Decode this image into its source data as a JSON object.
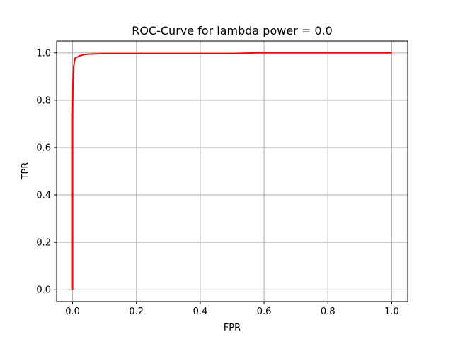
{
  "chart_data": {
    "type": "line",
    "title": "ROC-Curve for lambda power = 0.0",
    "xlabel": "FPR",
    "ylabel": "TPR",
    "xlim": [
      -0.05,
      1.05
    ],
    "ylim": [
      -0.05,
      1.05
    ],
    "xticks": [
      0.0,
      0.2,
      0.4,
      0.6,
      0.8,
      1.0
    ],
    "xtick_labels": [
      "0.0",
      "0.2",
      "0.4",
      "0.6",
      "0.8",
      "1.0"
    ],
    "yticks": [
      0.0,
      0.2,
      0.4,
      0.6,
      0.8,
      1.0
    ],
    "ytick_labels": [
      "0.0",
      "0.2",
      "0.4",
      "0.6",
      "0.8",
      "1.0"
    ],
    "grid": true,
    "series": [
      {
        "color": "#ff0000",
        "x": [
          0.0,
          0.0,
          0.001,
          0.003,
          0.008,
          0.02,
          0.035,
          0.06,
          0.1,
          0.2,
          0.3,
          0.4,
          0.5,
          0.58,
          0.7,
          0.8,
          0.9,
          1.0
        ],
        "y": [
          0.0,
          0.72,
          0.86,
          0.94,
          0.978,
          0.986,
          0.993,
          0.995,
          0.997,
          0.997,
          0.997,
          0.997,
          0.997,
          1.0,
          1.0,
          1.0,
          1.0,
          1.0
        ]
      }
    ]
  }
}
